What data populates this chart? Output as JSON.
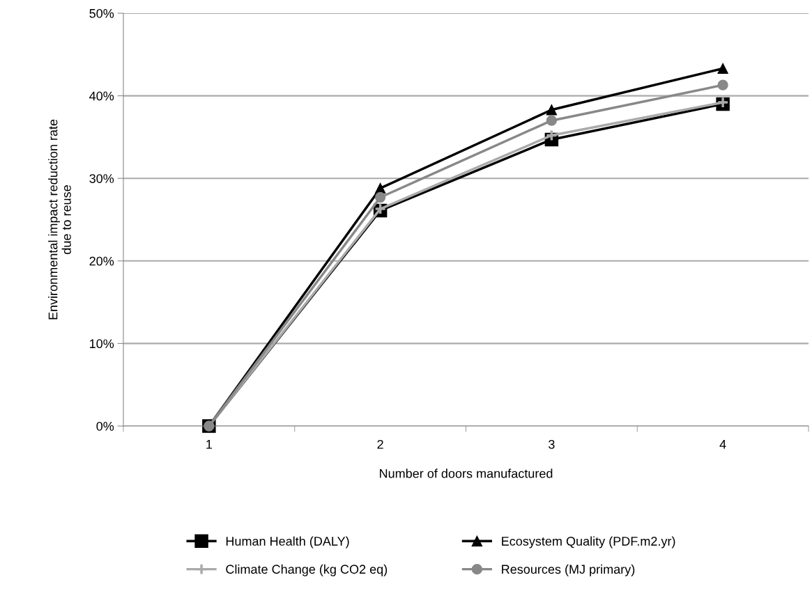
{
  "chart_data": {
    "type": "line",
    "xlabel": "Number of doors manufactured",
    "ylabel": "Environmental impact reduction rate\ndue to reuse",
    "categories": [
      "1",
      "2",
      "3",
      "4"
    ],
    "series": [
      {
        "name": "Human Health (DALY)",
        "color": "#000000",
        "marker": "square",
        "values": [
          0,
          26.1,
          34.7,
          39.0
        ]
      },
      {
        "name": "Ecosystem Quality (PDF.m2.yr)",
        "color": "#000000",
        "marker": "triangle",
        "values": [
          0,
          28.8,
          38.3,
          43.3
        ]
      },
      {
        "name": "Climate Change (kg CO2 eq)",
        "color": "#aaaaaa",
        "marker": "cross",
        "values": [
          0,
          26.3,
          35.2,
          39.2
        ]
      },
      {
        "name": "Resources (MJ primary)",
        "color": "#888888",
        "marker": "circle",
        "values": [
          0,
          27.7,
          37.0,
          41.3
        ]
      }
    ],
    "ylim": [
      0,
      50
    ],
    "yticks": [
      {
        "value": 0,
        "label": "0%"
      },
      {
        "value": 10,
        "label": "10%"
      },
      {
        "value": 20,
        "label": "20%"
      },
      {
        "value": 30,
        "label": "30%"
      },
      {
        "value": 40,
        "label": "40%"
      },
      {
        "value": 50,
        "label": "50%"
      }
    ],
    "grid": "y",
    "legend": "bottom",
    "line_style": "solid"
  }
}
